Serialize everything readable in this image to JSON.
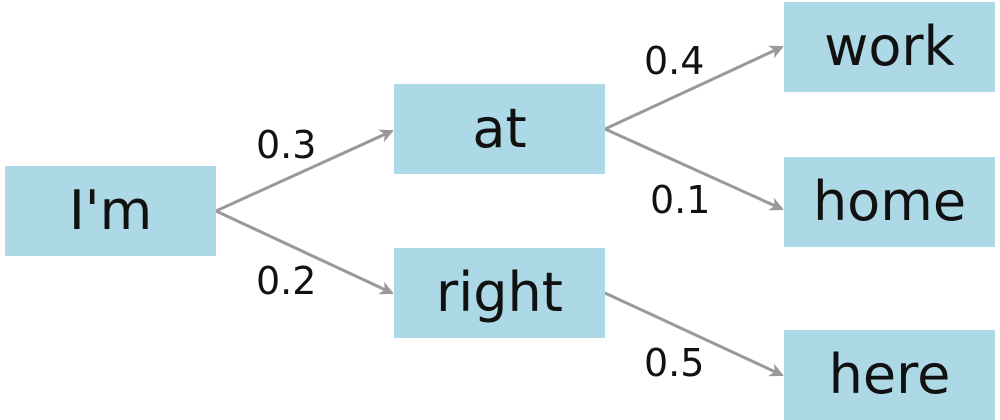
{
  "diagram": {
    "node_color": "#add8e6",
    "edge_color": "#999999",
    "text_color": "#111111",
    "nodes": {
      "im": "I'm",
      "at": "at",
      "right": "right",
      "work": "work",
      "home": "home",
      "here": "here"
    },
    "edges": {
      "im_at": "0.3",
      "im_right": "0.2",
      "at_work": "0.4",
      "at_home": "0.1",
      "right_here": "0.5"
    }
  }
}
